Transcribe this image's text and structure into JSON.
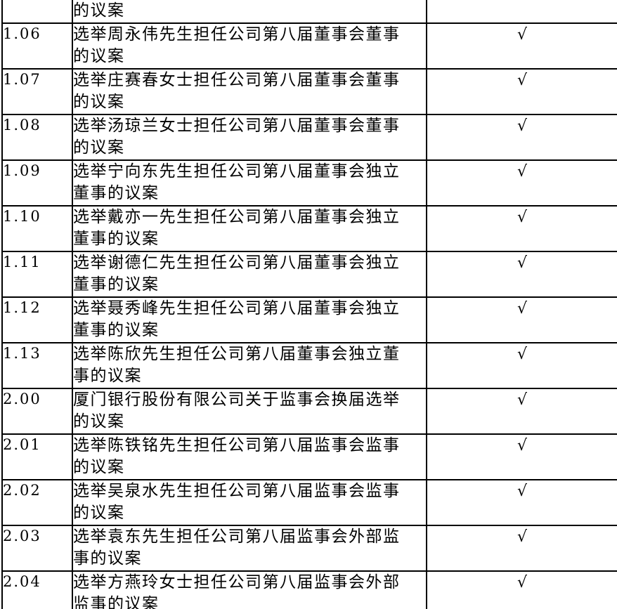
{
  "document": {
    "background_color": "#ffffff",
    "text_color": "#000000",
    "border_color": "#000000",
    "checkmark_glyph": "√"
  },
  "table": {
    "rows": [
      {
        "num": "",
        "line1": "的议案",
        "line2": "",
        "check": ""
      },
      {
        "num": "1.06",
        "line1": "选举周永伟先生担任公司第八届董事会董事",
        "line2": "的议案",
        "check": "√"
      },
      {
        "num": "1.07",
        "line1": "选举庄赛春女士担任公司第八届董事会董事",
        "line2": "的议案",
        "check": "√"
      },
      {
        "num": "1.08",
        "line1": "选举汤琼兰女士担任公司第八届董事会董事",
        "line2": "的议案",
        "check": "√"
      },
      {
        "num": "1.09",
        "line1": "选举宁向东先生担任公司第八届董事会独立",
        "line2": "董事的议案",
        "check": "√"
      },
      {
        "num": "1.10",
        "line1": "选举戴亦一先生担任公司第八届董事会独立",
        "line2": "董事的议案",
        "check": "√"
      },
      {
        "num": "1.11",
        "line1": "选举谢德仁先生担任公司第八届董事会独立",
        "line2": "董事的议案",
        "check": "√"
      },
      {
        "num": "1.12",
        "line1": "选举聂秀峰先生担任公司第八届董事会独立",
        "line2": "董事的议案",
        "check": "√"
      },
      {
        "num": "1.13",
        "line1": "选举陈欣先生担任公司第八届董事会独立董",
        "line2": "事的议案",
        "check": "√"
      },
      {
        "num": "2.00",
        "line1": "厦门银行股份有限公司关于监事会换届选举",
        "line2": "的议案",
        "check": "√"
      },
      {
        "num": "2.01",
        "line1": "选举陈铁铭先生担任公司第八届监事会监事",
        "line2": "的议案",
        "check": "√"
      },
      {
        "num": "2.02",
        "line1": "选举吴泉水先生担任公司第八届监事会监事",
        "line2": "的议案",
        "check": "√"
      },
      {
        "num": "2.03",
        "line1": "选举袁东先生担任公司第八届监事会外部监",
        "line2": "事的议案",
        "check": "√"
      },
      {
        "num": "2.04",
        "line1": "选举方燕玲女士担任公司第八届监事会外部",
        "line2": "监事的议案",
        "check": "√"
      }
    ]
  }
}
